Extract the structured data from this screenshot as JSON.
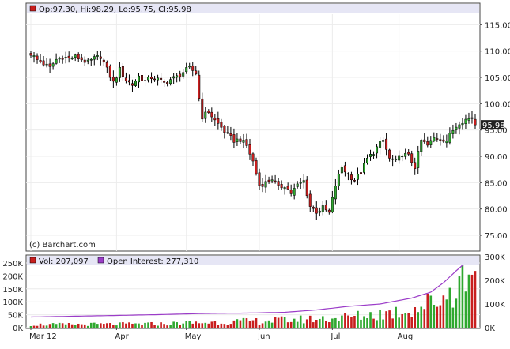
{
  "chart_data": [
    {
      "type": "candlestick",
      "legend": "Op:97.30, Hi:98.29, Lo:95.75, Cl:95.98",
      "credit": "(c) Barchart.com",
      "last_price_label": "95.98",
      "ylim": [
        72,
        117
      ],
      "y_ticks": [
        "75.00",
        "80.00",
        "85.00",
        "90.00",
        "95.00",
        "100.00",
        "105.00",
        "110.00",
        "115.00"
      ],
      "colors": {
        "up": "#2fa82f",
        "down": "#c81e1e",
        "legend_bg": "#e6e6f5"
      },
      "grid": true,
      "close_anchors": [
        [
          0,
          109.5
        ],
        [
          2,
          108.3
        ],
        [
          4,
          107.6
        ],
        [
          6,
          106.8
        ],
        [
          8,
          108.4
        ],
        [
          10,
          108.9
        ],
        [
          12,
          108.6
        ],
        [
          14,
          108.9
        ],
        [
          16,
          108.4
        ],
        [
          18,
          107.8
        ],
        [
          20,
          108.6
        ],
        [
          22,
          109.0
        ],
        [
          24,
          106.5
        ],
        [
          26,
          104.0
        ],
        [
          28,
          106.5
        ],
        [
          30,
          104.5
        ],
        [
          32,
          103.6
        ],
        [
          34,
          105.2
        ],
        [
          36,
          104.2
        ],
        [
          38,
          105.0
        ],
        [
          40,
          104.6
        ],
        [
          42,
          103.9
        ],
        [
          44,
          104.6
        ],
        [
          46,
          105.1
        ],
        [
          48,
          106.0
        ],
        [
          50,
          106.8
        ],
        [
          52,
          105.8
        ],
        [
          53,
          101.0
        ],
        [
          54,
          97.5
        ],
        [
          56,
          98.5
        ],
        [
          58,
          96.8
        ],
        [
          60,
          95.5
        ],
        [
          62,
          94.0
        ],
        [
          64,
          93.0
        ],
        [
          66,
          93.2
        ],
        [
          68,
          92.0
        ],
        [
          70,
          89.0
        ],
        [
          72,
          84.5
        ],
        [
          74,
          85.0
        ],
        [
          76,
          85.8
        ],
        [
          78,
          84.0
        ],
        [
          80,
          84.5
        ],
        [
          82,
          83.0
        ],
        [
          84,
          84.5
        ],
        [
          86,
          85.3
        ],
        [
          88,
          80.5
        ],
        [
          90,
          79.5
        ],
        [
          92,
          80.2
        ],
        [
          94,
          79.2
        ],
        [
          96,
          84.5
        ],
        [
          98,
          88.0
        ],
        [
          100,
          86.5
        ],
        [
          102,
          85.5
        ],
        [
          104,
          87.0
        ],
        [
          106,
          89.5
        ],
        [
          108,
          90.8
        ],
        [
          110,
          92.5
        ],
        [
          111,
          93.0
        ],
        [
          113,
          89.5
        ],
        [
          115,
          89.0
        ],
        [
          117,
          90.5
        ],
        [
          119,
          90.0
        ],
        [
          121,
          88.0
        ],
        [
          123,
          93.0
        ],
        [
          125,
          92.0
        ],
        [
          127,
          93.5
        ],
        [
          129,
          93.5
        ],
        [
          131,
          93.0
        ],
        [
          133,
          95.0
        ],
        [
          135,
          96.5
        ],
        [
          137,
          97.0
        ],
        [
          139,
          97.3
        ],
        [
          140,
          95.98
        ]
      ],
      "volume_panel": {
        "legend": [
          "Vol: 207,097",
          "Open Interest: 277,310"
        ],
        "left_ticks": [
          "0K",
          "50K",
          "100K",
          "150K",
          "200K",
          "250K"
        ],
        "right_ticks": [
          "0K",
          "100K",
          "200K",
          "300K"
        ],
        "vol_max": 250000,
        "oi_max": 300000,
        "oi_color": "#9b3cc8",
        "vol_anchors": [
          [
            0,
            12000
          ],
          [
            40,
            15000
          ],
          [
            60,
            22000
          ],
          [
            80,
            30000
          ],
          [
            96,
            38000
          ],
          [
            105,
            48000
          ],
          [
            115,
            62000
          ],
          [
            122,
            80000
          ],
          [
            126,
            100000
          ],
          [
            130,
            120000
          ],
          [
            134,
            170000
          ],
          [
            137,
            210000
          ],
          [
            140,
            210000
          ]
        ],
        "oi_anchors": [
          [
            0,
            45000
          ],
          [
            20,
            50000
          ],
          [
            40,
            55000
          ],
          [
            55,
            60000
          ],
          [
            70,
            62000
          ],
          [
            80,
            65000
          ],
          [
            90,
            75000
          ],
          [
            100,
            90000
          ],
          [
            110,
            100000
          ],
          [
            120,
            125000
          ],
          [
            126,
            150000
          ],
          [
            130,
            190000
          ],
          [
            134,
            240000
          ],
          [
            137,
            275000
          ],
          [
            140,
            277310
          ]
        ]
      },
      "x_labels": [
        {
          "label": "Mar 12",
          "index": 0
        },
        {
          "label": "Apr",
          "index": 27
        },
        {
          "label": "May",
          "index": 49
        },
        {
          "label": "Jun",
          "index": 72
        },
        {
          "label": "Jul",
          "index": 95
        },
        {
          "label": "Aug",
          "index": 116
        }
      ],
      "n_bars": 141
    }
  ]
}
